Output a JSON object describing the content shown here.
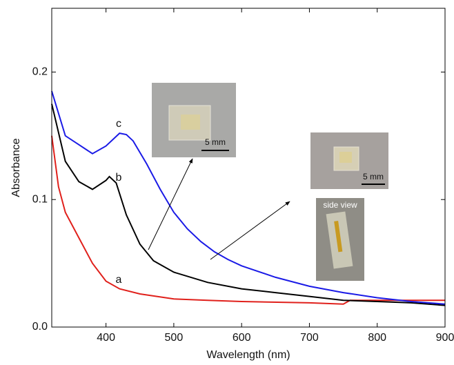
{
  "chart_data": {
    "type": "line",
    "x_label": "Wavelength (nm)",
    "y_label": "Absorbance",
    "xlim": [
      320,
      900
    ],
    "ylim": [
      0,
      0.25
    ],
    "xticks": [
      400,
      500,
      600,
      700,
      800,
      900
    ],
    "yticks": [
      {
        "value": 0,
        "label": "0.0"
      },
      0.1,
      0.2
    ],
    "series": [
      {
        "name": "a",
        "color": "#e0201b",
        "x": [
          320,
          330,
          340,
          360,
          380,
          400,
          420,
          450,
          500,
          550,
          600,
          700,
          750,
          760,
          800,
          900
        ],
        "values": [
          0.15,
          0.11,
          0.09,
          0.07,
          0.05,
          0.036,
          0.03,
          0.026,
          0.022,
          0.021,
          0.02,
          0.019,
          0.018,
          0.021,
          0.021,
          0.021
        ]
      },
      {
        "name": "b",
        "color": "#000000",
        "x": [
          320,
          340,
          360,
          380,
          400,
          405,
          415,
          430,
          450,
          470,
          500,
          550,
          600,
          650,
          700,
          750,
          800,
          850,
          900
        ],
        "values": [
          0.175,
          0.13,
          0.114,
          0.108,
          0.115,
          0.118,
          0.113,
          0.088,
          0.065,
          0.052,
          0.043,
          0.035,
          0.03,
          0.027,
          0.024,
          0.021,
          0.02,
          0.019,
          0.017
        ]
      },
      {
        "name": "c",
        "color": "#1a1ae6",
        "x": [
          320,
          340,
          360,
          380,
          400,
          420,
          430,
          440,
          460,
          480,
          500,
          520,
          540,
          560,
          580,
          600,
          650,
          700,
          750,
          800,
          850,
          900
        ],
        "values": [
          0.185,
          0.15,
          0.143,
          0.136,
          0.142,
          0.152,
          0.151,
          0.146,
          0.128,
          0.108,
          0.09,
          0.077,
          0.067,
          0.059,
          0.053,
          0.048,
          0.039,
          0.032,
          0.027,
          0.023,
          0.02,
          0.018
        ]
      }
    ],
    "annotations": [
      "5 mm",
      "5 mm",
      "side view"
    ]
  }
}
